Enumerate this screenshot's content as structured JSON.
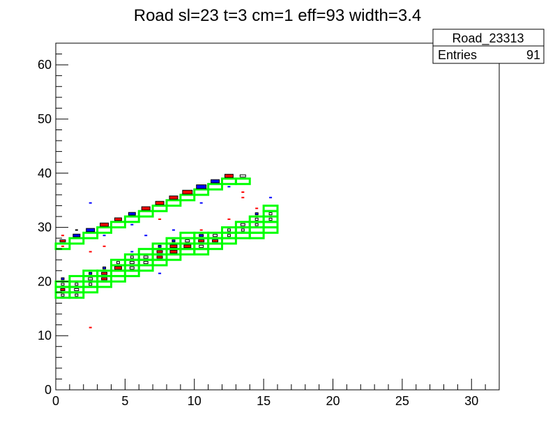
{
  "chart_data": {
    "type": "heatmap",
    "title": "Road sl=23 t=3 cm=1 eff=93 width=3.4",
    "xlabel": "",
    "ylabel": "",
    "xlim": [
      0,
      32
    ],
    "ylim": [
      0,
      64
    ],
    "x_ticks": [
      "0",
      "5",
      "10",
      "15",
      "20",
      "25",
      "30"
    ],
    "y_ticks": [
      "0",
      "10",
      "20",
      "30",
      "40",
      "50",
      "60"
    ],
    "stats_box": {
      "name": "Road_23313",
      "entries_label": "Entries",
      "entries_value": "91"
    },
    "colors": {
      "road": "#00ff00",
      "red_cell": "#ff0000",
      "blue_cell": "#0000ff",
      "frame": "#000000"
    },
    "road_boxes": [
      [
        0,
        26
      ],
      [
        1,
        27
      ],
      [
        2,
        28
      ],
      [
        3,
        29
      ],
      [
        4,
        30
      ],
      [
        5,
        31
      ],
      [
        6,
        32
      ],
      [
        7,
        33
      ],
      [
        8,
        34
      ],
      [
        9,
        35
      ],
      [
        10,
        36
      ],
      [
        11,
        37
      ],
      [
        12,
        38
      ],
      [
        13,
        38
      ],
      [
        0,
        17
      ],
      [
        0,
        18
      ],
      [
        0,
        19
      ],
      [
        1,
        17
      ],
      [
        1,
        18
      ],
      [
        1,
        19
      ],
      [
        1,
        20
      ],
      [
        2,
        18
      ],
      [
        2,
        19
      ],
      [
        2,
        20
      ],
      [
        2,
        21
      ],
      [
        3,
        19
      ],
      [
        3,
        20
      ],
      [
        3,
        21
      ],
      [
        4,
        20
      ],
      [
        4,
        21
      ],
      [
        4,
        22
      ],
      [
        4,
        23
      ],
      [
        5,
        21
      ],
      [
        5,
        22
      ],
      [
        5,
        23
      ],
      [
        5,
        24
      ],
      [
        6,
        22
      ],
      [
        6,
        23
      ],
      [
        6,
        24
      ],
      [
        6,
        25
      ],
      [
        7,
        23
      ],
      [
        7,
        24
      ],
      [
        7,
        25
      ],
      [
        7,
        26
      ],
      [
        8,
        24
      ],
      [
        8,
        25
      ],
      [
        8,
        26
      ],
      [
        8,
        27
      ],
      [
        9,
        25
      ],
      [
        9,
        26
      ],
      [
        9,
        27
      ],
      [
        9,
        28
      ],
      [
        10,
        25
      ],
      [
        10,
        26
      ],
      [
        10,
        27
      ],
      [
        10,
        28
      ],
      [
        11,
        26
      ],
      [
        11,
        27
      ],
      [
        11,
        28
      ],
      [
        12,
        27
      ],
      [
        12,
        28
      ],
      [
        12,
        29
      ],
      [
        13,
        28
      ],
      [
        13,
        29
      ],
      [
        13,
        30
      ],
      [
        14,
        28
      ],
      [
        14,
        29
      ],
      [
        14,
        30
      ],
      [
        14,
        31
      ],
      [
        15,
        29
      ],
      [
        15,
        30
      ],
      [
        15,
        31
      ],
      [
        15,
        32
      ],
      [
        15,
        33
      ]
    ],
    "cells": [
      {
        "x": 0,
        "y": 27,
        "c": "red",
        "s": 0.4
      },
      {
        "x": 1,
        "y": 28,
        "c": "blue",
        "s": 0.5
      },
      {
        "x": 2,
        "y": 29,
        "c": "blue",
        "s": 0.6
      },
      {
        "x": 3,
        "y": 30,
        "c": "red",
        "s": 0.6
      },
      {
        "x": 4,
        "y": 31,
        "c": "red",
        "s": 0.5
      },
      {
        "x": 5,
        "y": 32,
        "c": "blue",
        "s": 0.5
      },
      {
        "x": 6,
        "y": 33,
        "c": "red",
        "s": 0.6
      },
      {
        "x": 7,
        "y": 34,
        "c": "red",
        "s": 0.6
      },
      {
        "x": 8,
        "y": 35,
        "c": "red",
        "s": 0.6
      },
      {
        "x": 9,
        "y": 36,
        "c": "red",
        "s": 0.7
      },
      {
        "x": 10,
        "y": 37,
        "c": "blue",
        "s": 0.7
      },
      {
        "x": 11,
        "y": 38,
        "c": "blue",
        "s": 0.6
      },
      {
        "x": 12,
        "y": 39,
        "c": "red",
        "s": 0.6
      },
      {
        "x": 13,
        "y": 39,
        "c": "white",
        "s": 0.4
      },
      {
        "x": 0,
        "y": 17,
        "c": "white",
        "s": 0.2
      },
      {
        "x": 0,
        "y": 18,
        "c": "red",
        "s": 0.3
      },
      {
        "x": 0,
        "y": 19,
        "c": "white",
        "s": 0.2
      },
      {
        "x": 0,
        "y": 20,
        "c": "blue",
        "s": 0.1
      },
      {
        "x": 1,
        "y": 17,
        "c": "white",
        "s": 0.2
      },
      {
        "x": 1,
        "y": 18,
        "c": "white",
        "s": 0.3
      },
      {
        "x": 1,
        "y": 19,
        "c": "white",
        "s": 0.2
      },
      {
        "x": 2,
        "y": 19,
        "c": "white",
        "s": 0.2
      },
      {
        "x": 2,
        "y": 20,
        "c": "white",
        "s": 0.3
      },
      {
        "x": 2,
        "y": 21,
        "c": "blue",
        "s": 0.1
      },
      {
        "x": 3,
        "y": 20,
        "c": "red",
        "s": 0.4
      },
      {
        "x": 3,
        "y": 21,
        "c": "red",
        "s": 0.4
      },
      {
        "x": 3,
        "y": 22,
        "c": "blue",
        "s": 0.1
      },
      {
        "x": 4,
        "y": 22,
        "c": "red",
        "s": 0.5
      },
      {
        "x": 4,
        "y": 23,
        "c": "white",
        "s": 0.2
      },
      {
        "x": 5,
        "y": 22,
        "c": "white",
        "s": 0.3
      },
      {
        "x": 5,
        "y": 23,
        "c": "white",
        "s": 0.3
      },
      {
        "x": 5,
        "y": 24,
        "c": "white",
        "s": 0.2
      },
      {
        "x": 6,
        "y": 23,
        "c": "white",
        "s": 0.3
      },
      {
        "x": 6,
        "y": 24,
        "c": "white",
        "s": 0.3
      },
      {
        "x": 7,
        "y": 24,
        "c": "red",
        "s": 0.4
      },
      {
        "x": 7,
        "y": 25,
        "c": "red",
        "s": 0.4
      },
      {
        "x": 7,
        "y": 26,
        "c": "blue",
        "s": 0.1
      },
      {
        "x": 8,
        "y": 25,
        "c": "red",
        "s": 0.5
      },
      {
        "x": 8,
        "y": 26,
        "c": "red",
        "s": 0.5
      },
      {
        "x": 8,
        "y": 27,
        "c": "blue",
        "s": 0.2
      },
      {
        "x": 9,
        "y": 26,
        "c": "red",
        "s": 0.5
      },
      {
        "x": 9,
        "y": 27,
        "c": "white",
        "s": 0.3
      },
      {
        "x": 10,
        "y": 26,
        "c": "white",
        "s": 0.3
      },
      {
        "x": 10,
        "y": 27,
        "c": "red",
        "s": 0.4
      },
      {
        "x": 10,
        "y": 28,
        "c": "blue",
        "s": 0.3
      },
      {
        "x": 11,
        "y": 27,
        "c": "red",
        "s": 0.4
      },
      {
        "x": 11,
        "y": 28,
        "c": "white",
        "s": 0.3
      },
      {
        "x": 12,
        "y": 28,
        "c": "white",
        "s": 0.2
      },
      {
        "x": 12,
        "y": 29,
        "c": "white",
        "s": 0.2
      },
      {
        "x": 13,
        "y": 29,
        "c": "white",
        "s": 0.2
      },
      {
        "x": 13,
        "y": 30,
        "c": "white",
        "s": 0.3
      },
      {
        "x": 14,
        "y": 30,
        "c": "white",
        "s": 0.2
      },
      {
        "x": 14,
        "y": 31,
        "c": "white",
        "s": 0.2
      },
      {
        "x": 14,
        "y": 32,
        "c": "blue",
        "s": 0.2
      },
      {
        "x": 15,
        "y": 31,
        "c": "white",
        "s": 0.2
      },
      {
        "x": 15,
        "y": 32,
        "c": "white",
        "s": 0.2
      }
    ],
    "marks": [
      {
        "x": 2,
        "y": 34,
        "c": "blue"
      },
      {
        "x": 2,
        "y": 25,
        "c": "red"
      },
      {
        "x": 2,
        "y": 11,
        "c": "red"
      },
      {
        "x": 1,
        "y": 29,
        "c": "white"
      },
      {
        "x": 0,
        "y": 28,
        "c": "red"
      },
      {
        "x": 0,
        "y": 26,
        "c": "red"
      },
      {
        "x": 3,
        "y": 28,
        "c": "blue"
      },
      {
        "x": 5,
        "y": 25,
        "c": "blue"
      },
      {
        "x": 5,
        "y": 30,
        "c": "blue"
      },
      {
        "x": 7,
        "y": 31,
        "c": "red"
      },
      {
        "x": 7,
        "y": 21,
        "c": "blue"
      },
      {
        "x": 8,
        "y": 29,
        "c": "blue"
      },
      {
        "x": 10,
        "y": 34,
        "c": "blue"
      },
      {
        "x": 10,
        "y": 29,
        "c": "red"
      },
      {
        "x": 12,
        "y": 37,
        "c": "blue"
      },
      {
        "x": 12,
        "y": 31,
        "c": "red"
      },
      {
        "x": 13,
        "y": 36,
        "c": "red"
      },
      {
        "x": 13,
        "y": 35,
        "c": "red"
      },
      {
        "x": 15,
        "y": 35,
        "c": "blue"
      },
      {
        "x": 14,
        "y": 33,
        "c": "red"
      },
      {
        "x": 3,
        "y": 26,
        "c": "red"
      },
      {
        "x": 6,
        "y": 28,
        "c": "blue"
      }
    ]
  }
}
